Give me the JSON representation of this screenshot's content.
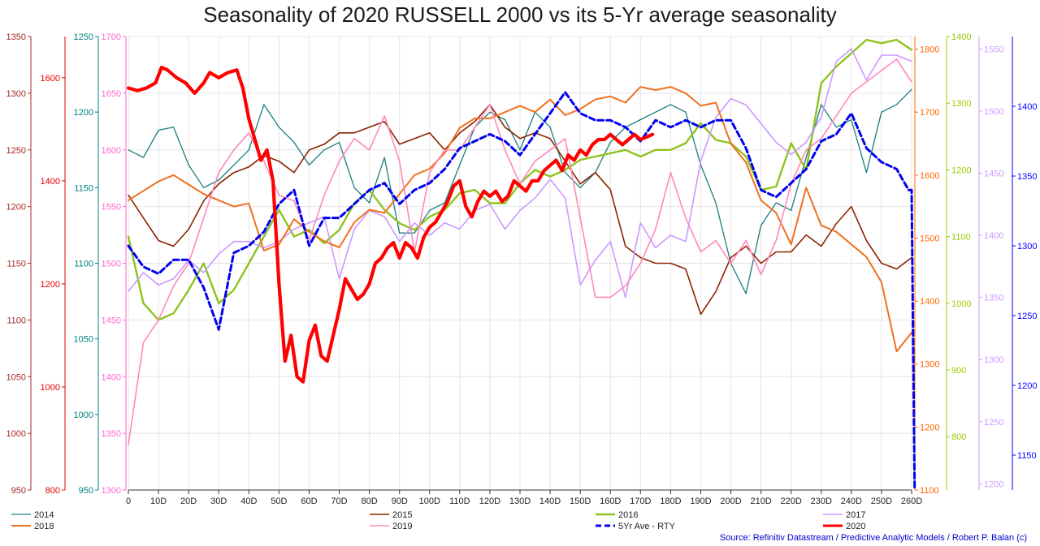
{
  "chart_data": {
    "type": "line",
    "title": "Seasonality of 2020 RUSSELL 2000 vs its 5-Yr average seasonality",
    "source": "Source: Refinitiv Datastream / Predictive Analytic Models / Robert P. Balan (c)",
    "x_ticks": [
      "0",
      "10D",
      "20D",
      "30D",
      "40D",
      "50D",
      "60D",
      "70D",
      "80D",
      "90D",
      "100D",
      "110D",
      "120D",
      "130D",
      "140D",
      "150D",
      "160D",
      "170D",
      "180D",
      "190D",
      "200D",
      "210D",
      "220D",
      "230D",
      "240D",
      "250D",
      "260D"
    ],
    "xlim": [
      0,
      260
    ],
    "grid": true,
    "legend_position": "bottom",
    "axes": [
      {
        "id": "a2014",
        "color": "#a52a2a",
        "ticks": [
          "950",
          "1000",
          "1050",
          "1100",
          "1150",
          "1200",
          "1250",
          "1300",
          "1350"
        ],
        "ylim": [
          950,
          1350
        ]
      },
      {
        "id": "a2018",
        "color": "#e60000",
        "ticks": [
          "800",
          "1000",
          "1200",
          "1400",
          "1600"
        ],
        "ylim": [
          800,
          1680
        ]
      },
      {
        "id": "a2015",
        "color": "#008080",
        "ticks": [
          "950",
          "1000",
          "1050",
          "1100",
          "1150",
          "1200",
          "1250"
        ],
        "ylim": [
          950,
          1250
        ]
      },
      {
        "id": "a2019",
        "color": "#ff66cc",
        "ticks": [
          "1300",
          "1350",
          "1400",
          "1450",
          "1500",
          "1550",
          "1600",
          "1650",
          "1700"
        ],
        "ylim": [
          1300,
          1700
        ]
      },
      {
        "id": "a2020",
        "color": "#ff6600",
        "ticks": [
          "1100",
          "1200",
          "1300",
          "1400",
          "1500",
          "1600",
          "1700",
          "1800"
        ],
        "ylim": [
          1100,
          1820
        ]
      },
      {
        "id": "a2016",
        "color": "#99cc00",
        "ticks": [
          "800",
          "900",
          "1000",
          "1100",
          "1200",
          "1300",
          "1400"
        ],
        "ylim": [
          720,
          1400
        ]
      },
      {
        "id": "a2017",
        "color": "#cc99ff",
        "ticks": [
          "1200",
          "1250",
          "1300",
          "1350",
          "1400",
          "1450",
          "1500",
          "1550"
        ],
        "ylim": [
          1195,
          1560
        ]
      },
      {
        "id": "a5yr",
        "color": "#0000ff",
        "ticks": [
          "1150",
          "1200",
          "1250",
          "1300",
          "1350",
          "1400"
        ],
        "ylim": [
          1125,
          1450
        ]
      }
    ],
    "series": [
      {
        "name": "2014",
        "color": "#1a7d7d",
        "width": 1.3,
        "dash": "",
        "x": [
          0,
          5,
          10,
          15,
          20,
          25,
          30,
          35,
          40,
          45,
          50,
          55,
          60,
          65,
          70,
          75,
          80,
          85,
          90,
          95,
          100,
          105,
          110,
          115,
          120,
          125,
          130,
          135,
          140,
          145,
          150,
          155,
          160,
          165,
          170,
          175,
          180,
          185,
          190,
          195,
          200,
          205,
          210,
          215,
          220,
          225,
          230,
          235,
          240,
          245,
          250,
          255,
          260
        ],
        "y": [
          1175,
          1170,
          1188,
          1190,
          1165,
          1150,
          1155,
          1165,
          1175,
          1205,
          1190,
          1180,
          1165,
          1175,
          1180,
          1150,
          1140,
          1170,
          1120,
          1120,
          1135,
          1140,
          1165,
          1190,
          1200,
          1195,
          1175,
          1200,
          1190,
          1160,
          1150,
          1160,
          1180,
          1190,
          1195,
          1200,
          1205,
          1200,
          1165,
          1140,
          1100,
          1080,
          1125,
          1140,
          1135,
          1170,
          1205,
          1190,
          1195,
          1160,
          1200,
          1205,
          1215
        ],
        "axis": "a2015"
      },
      {
        "name": "2015",
        "color": "#8b2500",
        "width": 1.6,
        "dash": "",
        "x": [
          0,
          5,
          10,
          15,
          20,
          25,
          30,
          35,
          40,
          45,
          50,
          55,
          60,
          65,
          70,
          75,
          80,
          85,
          90,
          95,
          100,
          105,
          110,
          115,
          120,
          125,
          130,
          135,
          140,
          145,
          150,
          155,
          160,
          165,
          170,
          175,
          180,
          185,
          190,
          195,
          200,
          205,
          210,
          215,
          220,
          225,
          230,
          235,
          240,
          245,
          250,
          255,
          260
        ],
        "y": [
          1210,
          1190,
          1170,
          1165,
          1180,
          1205,
          1220,
          1230,
          1235,
          1245,
          1240,
          1230,
          1250,
          1255,
          1265,
          1265,
          1270,
          1275,
          1255,
          1260,
          1265,
          1250,
          1265,
          1275,
          1290,
          1270,
          1260,
          1265,
          1260,
          1240,
          1220,
          1230,
          1215,
          1165,
          1155,
          1150,
          1150,
          1145,
          1105,
          1125,
          1155,
          1165,
          1150,
          1160,
          1160,
          1175,
          1165,
          1185,
          1200,
          1170,
          1150,
          1145,
          1155
        ],
        "axis": "a2014"
      },
      {
        "name": "2016",
        "color": "#8fc31f",
        "width": 2.4,
        "dash": "",
        "x": [
          0,
          5,
          10,
          15,
          20,
          25,
          30,
          35,
          40,
          45,
          50,
          55,
          60,
          65,
          70,
          75,
          80,
          85,
          90,
          95,
          100,
          105,
          110,
          115,
          120,
          125,
          130,
          135,
          140,
          145,
          150,
          155,
          160,
          165,
          170,
          175,
          180,
          185,
          190,
          195,
          200,
          205,
          210,
          215,
          220,
          225,
          230,
          235,
          240,
          245,
          250,
          255,
          260
        ],
        "y": [
          1100,
          1000,
          975,
          985,
          1020,
          1060,
          1000,
          1020,
          1060,
          1100,
          1140,
          1100,
          1110,
          1090,
          1110,
          1150,
          1170,
          1140,
          1120,
          1110,
          1130,
          1140,
          1165,
          1170,
          1150,
          1150,
          1180,
          1200,
          1190,
          1200,
          1215,
          1220,
          1225,
          1230,
          1220,
          1230,
          1230,
          1240,
          1270,
          1245,
          1240,
          1220,
          1170,
          1175,
          1240,
          1200,
          1330,
          1355,
          1375,
          1395,
          1390,
          1395,
          1380
        ],
        "axis": "a2016"
      },
      {
        "name": "2017",
        "color": "#cc99ff",
        "width": 1.6,
        "dash": "",
        "x": [
          0,
          5,
          10,
          15,
          20,
          25,
          30,
          35,
          40,
          45,
          50,
          55,
          60,
          65,
          70,
          75,
          80,
          85,
          90,
          95,
          100,
          105,
          110,
          115,
          120,
          125,
          130,
          135,
          140,
          145,
          150,
          155,
          160,
          165,
          170,
          175,
          180,
          185,
          190,
          195,
          200,
          205,
          210,
          215,
          220,
          225,
          230,
          235,
          240,
          245,
          250,
          255,
          260
        ],
        "y": [
          1355,
          1370,
          1360,
          1365,
          1380,
          1370,
          1385,
          1395,
          1395,
          1390,
          1395,
          1405,
          1410,
          1415,
          1365,
          1405,
          1420,
          1415,
          1395,
          1410,
          1400,
          1410,
          1405,
          1420,
          1425,
          1405,
          1420,
          1430,
          1445,
          1430,
          1360,
          1380,
          1395,
          1350,
          1410,
          1390,
          1400,
          1395,
          1460,
          1495,
          1510,
          1505,
          1490,
          1475,
          1465,
          1475,
          1495,
          1540,
          1550,
          1525,
          1545,
          1545,
          1540
        ],
        "axis": "a2017"
      },
      {
        "name": "2018",
        "color": "#f07020",
        "width": 2.0,
        "dash": "",
        "x": [
          0,
          5,
          10,
          15,
          20,
          25,
          30,
          35,
          40,
          45,
          50,
          55,
          60,
          65,
          70,
          75,
          80,
          85,
          90,
          95,
          100,
          105,
          110,
          115,
          120,
          125,
          130,
          135,
          140,
          145,
          150,
          155,
          160,
          165,
          170,
          175,
          180,
          185,
          190,
          195,
          200,
          205,
          210,
          215,
          220,
          225,
          230,
          235,
          240,
          245,
          250,
          255,
          260
        ],
        "y": [
          1560,
          1575,
          1590,
          1600,
          1585,
          1570,
          1560,
          1550,
          1555,
          1480,
          1490,
          1530,
          1510,
          1495,
          1485,
          1525,
          1545,
          1540,
          1570,
          1600,
          1610,
          1635,
          1675,
          1690,
          1690,
          1700,
          1710,
          1700,
          1720,
          1695,
          1705,
          1720,
          1725,
          1715,
          1740,
          1735,
          1740,
          1730,
          1710,
          1715,
          1650,
          1620,
          1560,
          1540,
          1490,
          1580,
          1520,
          1510,
          1490,
          1470,
          1430,
          1320,
          1350
        ],
        "axis": "a2020"
      },
      {
        "name": "2019",
        "color": "#ff88bb",
        "width": 1.6,
        "dash": "",
        "x": [
          0,
          5,
          10,
          15,
          20,
          25,
          30,
          35,
          40,
          45,
          50,
          55,
          60,
          65,
          70,
          75,
          80,
          85,
          90,
          95,
          100,
          105,
          110,
          115,
          120,
          125,
          130,
          135,
          140,
          145,
          150,
          155,
          160,
          165,
          170,
          175,
          180,
          185,
          190,
          195,
          200,
          205,
          210,
          215,
          220,
          225,
          230,
          235,
          240,
          245,
          250,
          255,
          260
        ],
        "y": [
          1340,
          1430,
          1450,
          1480,
          1500,
          1540,
          1580,
          1600,
          1615,
          1590,
          1560,
          1555,
          1520,
          1560,
          1590,
          1610,
          1600,
          1630,
          1590,
          1510,
          1580,
          1600,
          1600,
          1620,
          1640,
          1600,
          1570,
          1590,
          1600,
          1610,
          1540,
          1470,
          1470,
          1480,
          1500,
          1530,
          1580,
          1540,
          1510,
          1520,
          1500,
          1520,
          1490,
          1520,
          1570,
          1600,
          1610,
          1630,
          1650,
          1660,
          1670,
          1680,
          1660
        ],
        "axis": "a2019"
      },
      {
        "name": "2020",
        "color": "#ff0000",
        "width": 4.2,
        "dash": "",
        "x": [
          0,
          3,
          6,
          9,
          11,
          13,
          16,
          19,
          22,
          25,
          27,
          30,
          33,
          36,
          38,
          40,
          42,
          44,
          46,
          48,
          50,
          52,
          54,
          56,
          58,
          60,
          62,
          64,
          66,
          68,
          70,
          72,
          74,
          76,
          78,
          80,
          82,
          84,
          86,
          88,
          90,
          92,
          94,
          96,
          98,
          100,
          102,
          104,
          106,
          108,
          110,
          112,
          114,
          116,
          118,
          120,
          122,
          124,
          126,
          128,
          130,
          132,
          134,
          136,
          138,
          140,
          142,
          144,
          146,
          148,
          150,
          152,
          154,
          156,
          158,
          160,
          162,
          164,
          166,
          168,
          170,
          172,
          174
        ],
        "y": [
          1580,
          1575,
          1580,
          1590,
          1620,
          1615,
          1600,
          1590,
          1570,
          1590,
          1610,
          1600,
          1610,
          1615,
          1580,
          1520,
          1480,
          1440,
          1460,
          1400,
          1200,
          1050,
          1100,
          1020,
          1010,
          1090,
          1120,
          1060,
          1050,
          1100,
          1150,
          1210,
          1190,
          1170,
          1180,
          1200,
          1240,
          1250,
          1270,
          1280,
          1250,
          1280,
          1270,
          1250,
          1290,
          1310,
          1320,
          1340,
          1360,
          1390,
          1400,
          1350,
          1330,
          1360,
          1380,
          1370,
          1380,
          1360,
          1370,
          1400,
          1390,
          1380,
          1400,
          1400,
          1420,
          1430,
          1440,
          1420,
          1450,
          1440,
          1460,
          1450,
          1470,
          1480,
          1480,
          1490,
          1480,
          1470,
          1480,
          1490,
          1480,
          1485,
          1490
        ],
        "axis": "a2018"
      },
      {
        "name": "5Yr Ave - RTY",
        "color": "#0000ee",
        "width": 3.0,
        "dash": "7,4",
        "x": [
          0,
          5,
          10,
          15,
          20,
          25,
          30,
          35,
          40,
          45,
          50,
          55,
          60,
          65,
          70,
          75,
          80,
          85,
          90,
          95,
          100,
          105,
          110,
          115,
          120,
          125,
          130,
          135,
          140,
          145,
          150,
          155,
          160,
          165,
          170,
          175,
          180,
          185,
          190,
          195,
          200,
          205,
          210,
          215,
          220,
          225,
          230,
          235,
          240,
          245,
          250,
          255,
          259,
          260,
          261
        ],
        "y": [
          1300,
          1285,
          1280,
          1290,
          1290,
          1270,
          1240,
          1295,
          1300,
          1310,
          1330,
          1340,
          1300,
          1320,
          1320,
          1330,
          1340,
          1345,
          1330,
          1340,
          1345,
          1355,
          1370,
          1375,
          1380,
          1375,
          1365,
          1380,
          1395,
          1410,
          1395,
          1390,
          1390,
          1385,
          1375,
          1390,
          1385,
          1390,
          1385,
          1390,
          1390,
          1370,
          1340,
          1335,
          1345,
          1355,
          1375,
          1380,
          1395,
          1370,
          1360,
          1355,
          1340,
          1340,
          1125
        ],
        "axis": "a5yr"
      }
    ]
  },
  "legend": [
    {
      "label": "2014",
      "color": "#1a7d7d",
      "width": 1.3,
      "dash": ""
    },
    {
      "label": "2018",
      "color": "#f07020",
      "width": 2.0,
      "dash": ""
    },
    {
      "label": "2015",
      "color": "#8b2500",
      "width": 1.6,
      "dash": ""
    },
    {
      "label": "2019",
      "color": "#ff88bb",
      "width": 1.6,
      "dash": ""
    },
    {
      "label": "2016",
      "color": "#8fc31f",
      "width": 2.4,
      "dash": ""
    },
    {
      "label": "5Yr Ave - RTY",
      "color": "#0000ee",
      "width": 3.0,
      "dash": "7,4"
    },
    {
      "label": "2017",
      "color": "#cc99ff",
      "width": 1.6,
      "dash": ""
    },
    {
      "label": "2020",
      "color": "#ff0000",
      "width": 4.2,
      "dash": ""
    }
  ]
}
